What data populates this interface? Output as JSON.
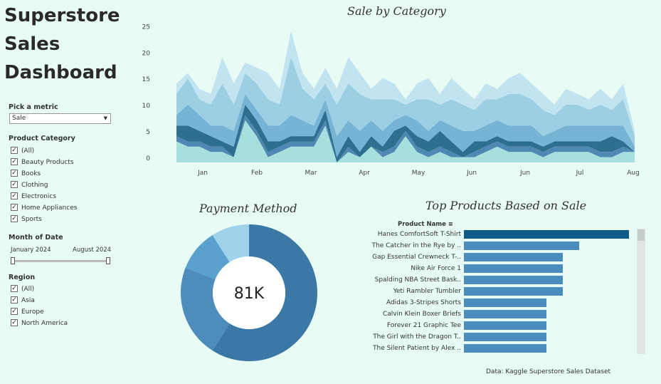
{
  "dashboard": {
    "title_lines": [
      "Superstore",
      "Sales",
      "Dashboard"
    ]
  },
  "filters": {
    "metric": {
      "label": "Pick a metric",
      "value": "Sale"
    },
    "category": {
      "label": "Product Category",
      "items": [
        "(All)",
        "Beauty Products",
        "Books",
        "Clothing",
        "Electronics",
        "Home Appliances",
        "Sports"
      ]
    },
    "month": {
      "label": "Month of Date",
      "start": "January 2024",
      "end": "August 2024"
    },
    "region": {
      "label": "Region",
      "items": [
        "(All)",
        "Asia",
        "Europe",
        "North America"
      ]
    }
  },
  "area_chart": {
    "title": "Sale by Category"
  },
  "payment": {
    "title": "Payment Method",
    "center_value": "81K"
  },
  "top_products": {
    "title": "Top Products Based on  Sale",
    "column_header": "Product Name"
  },
  "footer": "Data: Kaggle Superstore Sales Dataset",
  "chart_data": [
    {
      "type": "area",
      "title": "Sale by Category",
      "x_tick_labels": [
        "Jan",
        "Feb",
        "Mar",
        "Apr",
        "May",
        "Jun",
        "Jun",
        "Jul",
        "Aug"
      ],
      "y_ticks": [
        0,
        5,
        10,
        15,
        20,
        25
      ],
      "ylim": [
        0,
        26
      ],
      "stacked": true,
      "colors": [
        "#a6e0dc",
        "#4f89b3",
        "#2e6e8f",
        "#76b3d4",
        "#9ccfe3",
        "#c1e4f0"
      ],
      "totals": [
        15,
        17,
        14,
        13,
        20,
        15,
        19,
        18,
        17,
        14,
        25,
        17,
        14,
        18,
        14,
        20,
        17,
        14,
        16,
        15,
        12,
        15,
        16,
        13,
        16,
        14,
        12,
        15,
        14,
        16,
        17,
        15,
        13,
        11,
        14,
        13,
        12,
        14,
        12,
        15,
        6
      ],
      "series": [
        {
          "values": [
            4,
            3,
            3,
            2,
            2,
            1,
            8,
            5,
            1,
            2,
            3,
            3,
            3,
            7,
            0,
            2,
            1,
            3,
            1,
            2,
            5,
            2,
            1,
            2,
            1,
            1,
            1,
            2,
            3,
            2,
            2,
            2,
            1,
            2,
            2,
            2,
            2,
            1,
            1,
            2,
            2
          ]
        },
        {
          "values": [
            1,
            1,
            1,
            1,
            1,
            0,
            1,
            1,
            1,
            1,
            1,
            1,
            1,
            1,
            0,
            1,
            0,
            0,
            1,
            1,
            1,
            1,
            1,
            1,
            1,
            0,
            1,
            1,
            1,
            1,
            1,
            1,
            1,
            1,
            1,
            1,
            1,
            1,
            1,
            1,
            0
          ]
        },
        {
          "values": [
            2,
            3,
            2,
            2,
            1,
            2,
            2,
            2,
            2,
            1,
            1,
            1,
            1,
            2,
            1,
            2,
            1,
            2,
            1,
            3,
            1,
            2,
            2,
            3,
            2,
            1,
            2,
            1,
            1,
            1,
            1,
            1,
            1,
            1,
            1,
            1,
            1,
            2,
            3,
            1,
            0
          ]
        },
        {
          "values": [
            2,
            4,
            3,
            2,
            3,
            3,
            2,
            2,
            3,
            3,
            4,
            3,
            2,
            2,
            4,
            3,
            4,
            3,
            3,
            2,
            2,
            3,
            2,
            2,
            3,
            4,
            2,
            3,
            3,
            3,
            3,
            3,
            2,
            2,
            3,
            3,
            3,
            3,
            2,
            3,
            1
          ]
        },
        {
          "values": [
            4,
            5,
            3,
            4,
            8,
            5,
            4,
            5,
            5,
            4,
            11,
            6,
            5,
            3,
            6,
            7,
            7,
            4,
            6,
            4,
            2,
            4,
            6,
            3,
            5,
            5,
            4,
            5,
            4,
            6,
            6,
            5,
            5,
            3,
            4,
            4,
            3,
            4,
            3,
            5,
            2
          ]
        },
        {
          "values": [
            2,
            1,
            2,
            2,
            5,
            4,
            2,
            3,
            5,
            3,
            5,
            3,
            2,
            3,
            3,
            5,
            4,
            2,
            4,
            3,
            1,
            3,
            4,
            2,
            4,
            3,
            2,
            3,
            2,
            3,
            4,
            3,
            3,
            2,
            3,
            2,
            2,
            3,
            2,
            3,
            1
          ]
        }
      ]
    },
    {
      "type": "pie",
      "title": "Payment Method",
      "center_label": "81K",
      "slices": [
        0.59,
        0.22,
        0.1,
        0.09
      ],
      "colors": [
        "#3b78a6",
        "#4e8dbb",
        "#5aa1cd",
        "#9fd3ec"
      ]
    },
    {
      "type": "bar",
      "orientation": "horizontal",
      "title": "Top Products Based on  Sale",
      "categories": [
        "Hanes ComfortSoft T-Shirt",
        "The Catcher in the Rye by ..",
        "Gap Essential Crewneck T-..",
        "Nike Air Force 1",
        "Spalding NBA Street Bask..",
        "Yeti Rambler Tumbler",
        "Adidas 3-Stripes Shorts",
        "Calvin Klein Boxer Briefs",
        "Forever 21 Graphic Tee",
        "The Girl with the Dragon T..",
        "The Silent Patient by Alex .."
      ],
      "values": [
        10,
        7,
        6,
        6,
        6,
        6,
        5,
        5,
        5,
        5,
        5
      ],
      "colors": {
        "highlight": "#0c5a86",
        "default": "#4a8cbc"
      }
    }
  ]
}
